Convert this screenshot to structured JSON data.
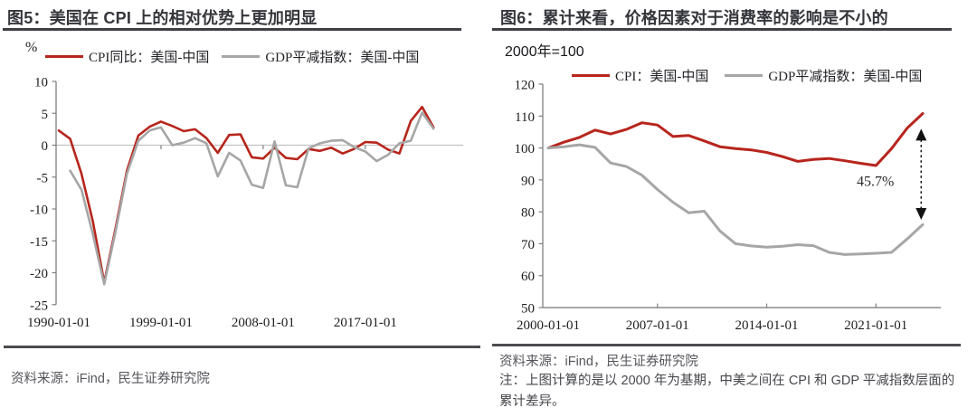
{
  "colors": {
    "red": "#b7251c",
    "gray": "#a6a6a6",
    "title": "#35363b",
    "rule": "#3e3f45",
    "axis": "#808080",
    "zero_line": "#c2c2c2",
    "annotation": "#111111"
  },
  "fig5": {
    "title": "图5：美国在 CPI 上的相对优势上更加明显",
    "unit_label": "%",
    "legend": [
      {
        "label": "CPI同比：美国-中国"
      },
      {
        "label": "GDP平减指数：美国-中国"
      }
    ],
    "source": "资料来源：iFind，民生证券研究院"
  },
  "fig6": {
    "title": "图6：累计来看，价格因素对于消费率的影响是不小的",
    "base_label": "2000年=100",
    "legend": [
      {
        "label": "CPI：美国-中国"
      },
      {
        "label": "GDP平减指数：美国-中国"
      }
    ],
    "annotation_label": "45.7%",
    "source": "资料来源：iFind，民生证券研究院",
    "note": "注：上图计算的是以 2000 年为基期，中美之间在 CPI 和 GDP 平减指数层面的累计差异。"
  },
  "chart_data": [
    {
      "type": "line",
      "title": "图5：美国在 CPI 上的相对优势上更加明显",
      "ylabel": "%",
      "ylim": [
        -25,
        10
      ],
      "yticks": [
        10,
        5,
        0,
        -5,
        -10,
        -15,
        -20,
        -25
      ],
      "xtick_labels": [
        "1990-01-01",
        "1999-01-01",
        "2008-01-01",
        "2017-01-01"
      ],
      "xtick_years": [
        1990,
        1999,
        2008,
        2017
      ],
      "grid": false,
      "legend_position": "top",
      "x": [
        1990,
        1991,
        1992,
        1993,
        1994,
        1995,
        1996,
        1997,
        1998,
        1999,
        2000,
        2001,
        2002,
        2003,
        2004,
        2005,
        2006,
        2007,
        2008,
        2009,
        2010,
        2011,
        2012,
        2013,
        2014,
        2015,
        2016,
        2017,
        2018,
        2019,
        2020,
        2021,
        2022,
        2023
      ],
      "series": [
        {
          "name": "CPI同比：美国-中国",
          "color": "#b7251c",
          "values": [
            2.3,
            1.0,
            -4.5,
            -12.0,
            -21.5,
            -13.0,
            -4.0,
            1.5,
            2.9,
            3.7,
            3.0,
            2.2,
            2.5,
            1.1,
            -1.2,
            1.6,
            1.7,
            -1.9,
            -2.1,
            -0.4,
            -2.0,
            -2.2,
            -0.6,
            -0.9,
            -0.4,
            -1.3,
            -0.6,
            0.5,
            0.4,
            -0.7,
            -1.3,
            3.8,
            6.0,
            2.8
          ]
        },
        {
          "name": "GDP平减指数：美国-中国",
          "color": "#a6a6a6",
          "values": [
            null,
            -4.0,
            -7.0,
            -14.0,
            -21.8,
            -13.5,
            -4.5,
            0.7,
            2.3,
            2.8,
            0.0,
            0.4,
            1.1,
            0.3,
            -4.9,
            -1.2,
            -2.4,
            -6.2,
            -6.7,
            0.6,
            -6.3,
            -6.6,
            -0.5,
            0.3,
            0.7,
            0.8,
            -0.3,
            -1.0,
            -2.5,
            -1.5,
            0.3,
            0.7,
            5.1,
            2.6
          ]
        }
      ]
    },
    {
      "type": "line",
      "title": "图6：累计来看，价格因素对于消费率的影响是不小的",
      "subtitle": "2000年=100",
      "ylim": [
        50,
        120
      ],
      "yticks": [
        120,
        110,
        100,
        90,
        80,
        70,
        60,
        50
      ],
      "xtick_labels": [
        "2000-01-01",
        "2007-01-01",
        "2014-01-01",
        "2021-01-01"
      ],
      "xtick_years": [
        2000,
        2007,
        2014,
        2021
      ],
      "grid": false,
      "legend_position": "top",
      "x": [
        2000,
        2001,
        2002,
        2003,
        2004,
        2005,
        2006,
        2007,
        2008,
        2009,
        2010,
        2011,
        2012,
        2013,
        2014,
        2015,
        2016,
        2017,
        2018,
        2019,
        2020,
        2021,
        2022,
        2023,
        2024
      ],
      "series": [
        {
          "name": "CPI：美国-中国",
          "color": "#b7251c",
          "values": [
            100,
            101.8,
            103.3,
            105.6,
            104.4,
            105.8,
            107.9,
            107.2,
            103.6,
            103.9,
            102.2,
            100.4,
            99.8,
            99.4,
            98.6,
            97.3,
            95.8,
            96.4,
            96.7,
            96.0,
            95.2,
            94.5,
            99.8,
            106.2,
            110.8
          ]
        },
        {
          "name": "GDP平减指数：美国-中国",
          "color": "#a6a6a6",
          "values": [
            100,
            100.4,
            101.0,
            100.2,
            95.3,
            94.2,
            91.5,
            87.0,
            83.0,
            79.7,
            80.2,
            74.0,
            70.0,
            69.3,
            68.9,
            69.2,
            69.7,
            69.4,
            67.3,
            66.6,
            66.8,
            67.0,
            67.3,
            71.5,
            76.0
          ]
        }
      ],
      "annotation": {
        "text": "45.7%",
        "x_year": 2023.9,
        "y_from": 106.0,
        "y_to": 77.5
      }
    }
  ]
}
